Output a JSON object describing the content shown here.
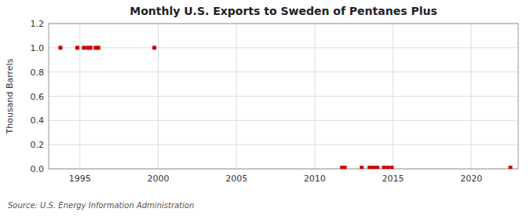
{
  "chart_data": {
    "type": "scatter",
    "title": "Monthly U.S. Exports to Sweden of Pentanes Plus",
    "ylabel": "Thousand Barrels",
    "source": "Source: U.S. Energy Information Administration",
    "x": [
      1993.75,
      1994.83,
      1995.25,
      1995.5,
      1995.67,
      1996.0,
      1996.17,
      1999.75,
      2011.75,
      2011.92,
      2013.0,
      2013.5,
      2013.75,
      2014.0,
      2014.42,
      2014.67,
      2014.92,
      2022.5
    ],
    "values": [
      1.0,
      1.0,
      1.0,
      1.0,
      1.0,
      1.0,
      1.0,
      1.0,
      0.01,
      0.01,
      0.01,
      0.01,
      0.01,
      0.01,
      0.01,
      0.01,
      0.01,
      0.01
    ],
    "color": "#cc0000",
    "marker": "square",
    "xlim": [
      1993.0,
      2023.0
    ],
    "ylim": [
      0.0,
      1.2
    ],
    "xticks": [
      1995,
      2000,
      2005,
      2010,
      2015,
      2020
    ],
    "yticks": [
      {
        "value": 0.0,
        "label": "0.0"
      },
      0.2,
      0.4,
      0.6,
      0.8,
      {
        "value": 1.0,
        "label": "1.0"
      },
      1.2
    ],
    "grid": true
  }
}
